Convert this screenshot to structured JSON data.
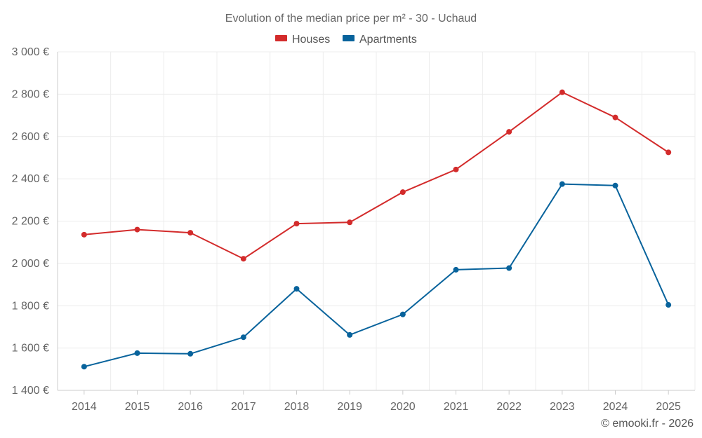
{
  "chart_data": {
    "type": "line",
    "title": "Evolution of the median price per m² - 30 - Uchaud",
    "categories": [
      "2014",
      "2015",
      "2016",
      "2017",
      "2018",
      "2019",
      "2020",
      "2021",
      "2022",
      "2023",
      "2024",
      "2025"
    ],
    "series": [
      {
        "name": "Houses",
        "color": "#d32b2b",
        "values": [
          2136,
          2160,
          2145,
          2022,
          2188,
          2194,
          2337,
          2444,
          2622,
          2809,
          2690,
          2525
        ]
      },
      {
        "name": "Apartments",
        "color": "#08639c",
        "values": [
          1512,
          1576,
          1573,
          1651,
          1880,
          1662,
          1759,
          1970,
          1978,
          2375,
          2368,
          1804
        ]
      }
    ],
    "yticks": [
      1400,
      1600,
      1800,
      2000,
      2200,
      2400,
      2600,
      2800,
      3000
    ],
    "ytick_labels": [
      "1 400 €",
      "1 600 €",
      "1 800 €",
      "2 000 €",
      "2 200 €",
      "2 400 €",
      "2 600 €",
      "2 800 €",
      "3 000 €"
    ],
    "ylim": [
      1400,
      3000
    ],
    "xlabel": "",
    "ylabel": "",
    "legend_position": "top-center",
    "grid": true
  },
  "credit": "© emooki.fr - 2026"
}
